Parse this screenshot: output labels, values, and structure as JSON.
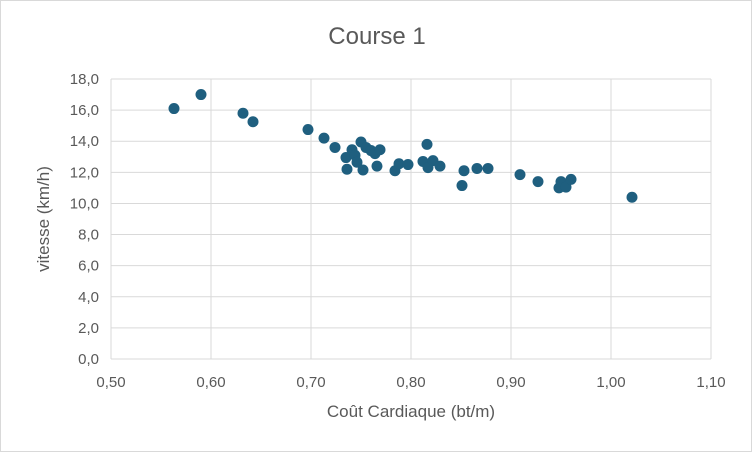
{
  "chart_data": {
    "type": "scatter",
    "title": "Course 1",
    "xlabel": "Coût Cardiaque (bt/m)",
    "ylabel": "vitesse (km/h)",
    "xlim": [
      0.5,
      1.1
    ],
    "ylim": [
      0,
      18
    ],
    "x_ticks": [
      "0,50",
      "0,60",
      "0,70",
      "0,80",
      "0,90",
      "1,00",
      "1,10"
    ],
    "y_ticks": [
      "0,0",
      "2,0",
      "4,0",
      "6,0",
      "8,0",
      "10,0",
      "12,0",
      "14,0",
      "16,0",
      "18,0"
    ],
    "x_tick_values": [
      0.5,
      0.6,
      0.7,
      0.8,
      0.9,
      1.0,
      1.1
    ],
    "y_tick_values": [
      0,
      2,
      4,
      6,
      8,
      10,
      12,
      14,
      16,
      18
    ],
    "grid": true,
    "marker_color": "#1f5f7f",
    "points": [
      {
        "x": 0.563,
        "y": 16.1
      },
      {
        "x": 0.59,
        "y": 17.0
      },
      {
        "x": 0.632,
        "y": 15.8
      },
      {
        "x": 0.642,
        "y": 15.25
      },
      {
        "x": 0.697,
        "y": 14.75
      },
      {
        "x": 0.713,
        "y": 14.2
      },
      {
        "x": 0.724,
        "y": 13.6
      },
      {
        "x": 0.735,
        "y": 12.95
      },
      {
        "x": 0.736,
        "y": 12.2
      },
      {
        "x": 0.741,
        "y": 13.45
      },
      {
        "x": 0.744,
        "y": 13.1
      },
      {
        "x": 0.746,
        "y": 12.65
      },
      {
        "x": 0.75,
        "y": 13.95
      },
      {
        "x": 0.752,
        "y": 12.15
      },
      {
        "x": 0.755,
        "y": 13.6
      },
      {
        "x": 0.76,
        "y": 13.4
      },
      {
        "x": 0.764,
        "y": 13.2
      },
      {
        "x": 0.766,
        "y": 12.4
      },
      {
        "x": 0.769,
        "y": 13.45
      },
      {
        "x": 0.784,
        "y": 12.1
      },
      {
        "x": 0.788,
        "y": 12.55
      },
      {
        "x": 0.797,
        "y": 12.5
      },
      {
        "x": 0.812,
        "y": 12.7
      },
      {
        "x": 0.816,
        "y": 13.8
      },
      {
        "x": 0.817,
        "y": 12.3
      },
      {
        "x": 0.822,
        "y": 12.75
      },
      {
        "x": 0.829,
        "y": 12.4
      },
      {
        "x": 0.851,
        "y": 11.15
      },
      {
        "x": 0.853,
        "y": 12.1
      },
      {
        "x": 0.866,
        "y": 12.25
      },
      {
        "x": 0.877,
        "y": 12.25
      },
      {
        "x": 0.909,
        "y": 11.85
      },
      {
        "x": 0.927,
        "y": 11.4
      },
      {
        "x": 0.948,
        "y": 11.0
      },
      {
        "x": 0.95,
        "y": 11.4
      },
      {
        "x": 0.955,
        "y": 11.05
      },
      {
        "x": 0.96,
        "y": 11.55
      },
      {
        "x": 1.021,
        "y": 10.4
      }
    ]
  }
}
